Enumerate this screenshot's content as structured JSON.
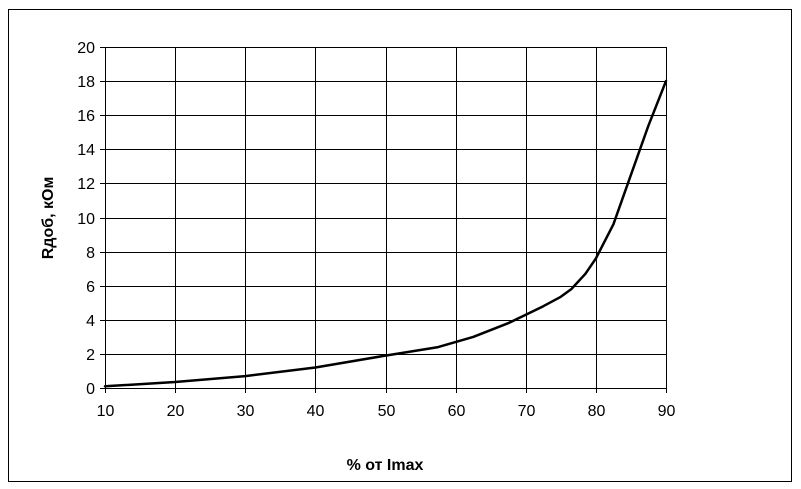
{
  "chart_data": {
    "type": "line",
    "title": "",
    "xlabel": "% от Imax",
    "ylabel": "Rдоб, кОм",
    "xlim": [
      10,
      90
    ],
    "ylim": [
      0,
      20
    ],
    "x_ticks": [
      "10",
      "20",
      "30",
      "40",
      "50",
      "60",
      "70",
      "80",
      "90"
    ],
    "y_ticks": [
      "0",
      "2",
      "4",
      "6",
      "8",
      "10",
      "12",
      "14",
      "16",
      "18",
      "20"
    ],
    "grid": true,
    "legend": "none",
    "series": [
      {
        "color": "#000000",
        "x": [
          10,
          20,
          30,
          40,
          50,
          57.5,
          62.5,
          67.5,
          70,
          72.5,
          75,
          76.5,
          78.5,
          80,
          82.5,
          85,
          87.5,
          90
        ],
        "y": [
          0.1,
          0.35,
          0.7,
          1.2,
          1.9,
          2.4,
          3.0,
          3.8,
          4.3,
          4.8,
          5.35,
          5.8,
          6.7,
          7.6,
          9.6,
          12.5,
          15.4,
          18.0
        ]
      }
    ]
  }
}
